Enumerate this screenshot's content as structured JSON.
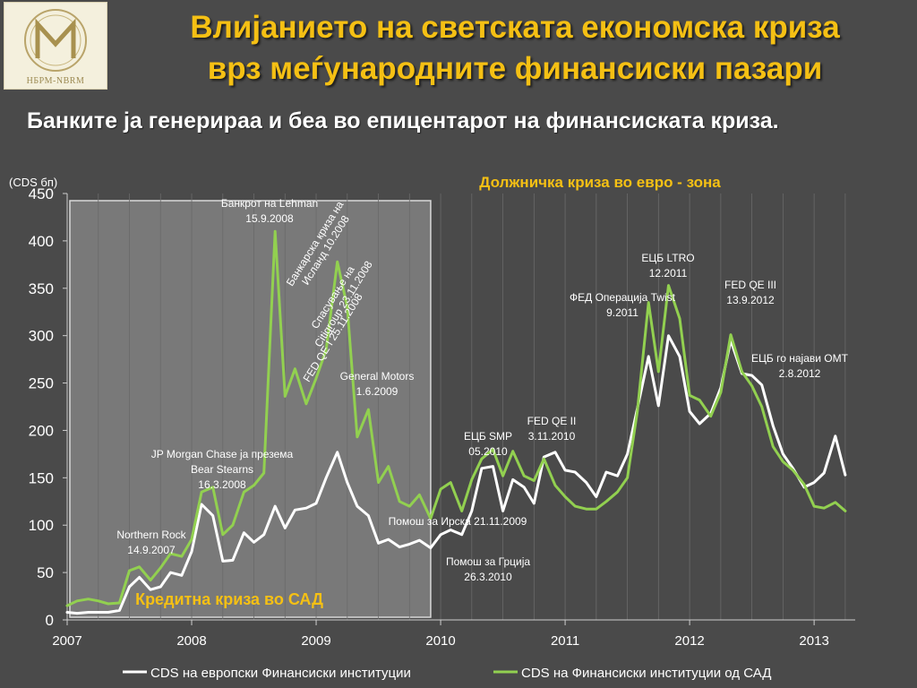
{
  "header": {
    "logo_caption": "НБРМ-NBRM",
    "title_line1": "Влијанието на светската економска криза",
    "title_line2": "врз меѓународните финансиски пазари",
    "subtitle": "Банките ја генерираа и беа во епицентарот на финансиската криза."
  },
  "colors": {
    "background": "#4a4a4a",
    "title": "#f5c014",
    "highlight_label": "#f5c014",
    "series_europe": "#ffffff",
    "series_usa": "#92d050",
    "shaded_region": "#8a8a8a"
  },
  "chart_data": {
    "type": "line",
    "ylabel": "(CDS бп)",
    "ylim": [
      0,
      450
    ],
    "yticks": [
      0,
      50,
      100,
      150,
      200,
      250,
      300,
      350,
      400,
      450
    ],
    "xlim": [
      2007.0,
      2013.33
    ],
    "xticks": [
      {
        "value": 2007,
        "label": "2007"
      },
      {
        "value": 2008,
        "label": "2008"
      },
      {
        "value": 2009,
        "label": "2009"
      },
      {
        "value": 2010,
        "label": "2010"
      },
      {
        "value": 2011,
        "label": "2011"
      },
      {
        "value": 2012,
        "label": "2012"
      },
      {
        "value": 2013,
        "label": "2013"
      }
    ],
    "grid": "vertical",
    "legend_position": "bottom",
    "shaded_region": {
      "x": [
        2007.0,
        2009.92
      ],
      "label": "Кредитна криза во САД"
    },
    "region_label": "Должничка криза во евро - зона",
    "series": [
      {
        "name": "CDS на европски Финансиски институции",
        "color": "#ffffff",
        "points": [
          [
            2007.0,
            8
          ],
          [
            2007.08,
            7
          ],
          [
            2007.17,
            8
          ],
          [
            2007.25,
            8
          ],
          [
            2007.33,
            8
          ],
          [
            2007.42,
            10
          ],
          [
            2007.5,
            35
          ],
          [
            2007.58,
            45
          ],
          [
            2007.67,
            32
          ],
          [
            2007.75,
            35
          ],
          [
            2007.83,
            50
          ],
          [
            2007.92,
            47
          ],
          [
            2008.0,
            72
          ],
          [
            2008.08,
            122
          ],
          [
            2008.17,
            110
          ],
          [
            2008.25,
            62
          ],
          [
            2008.33,
            63
          ],
          [
            2008.42,
            92
          ],
          [
            2008.5,
            82
          ],
          [
            2008.58,
            90
          ],
          [
            2008.67,
            120
          ],
          [
            2008.75,
            97
          ],
          [
            2008.83,
            116
          ],
          [
            2008.92,
            118
          ],
          [
            2009.0,
            123
          ],
          [
            2009.08,
            150
          ],
          [
            2009.17,
            177
          ],
          [
            2009.25,
            145
          ],
          [
            2009.33,
            120
          ],
          [
            2009.42,
            110
          ],
          [
            2009.5,
            81
          ],
          [
            2009.58,
            85
          ],
          [
            2009.67,
            77
          ],
          [
            2009.75,
            80
          ],
          [
            2009.83,
            84
          ],
          [
            2009.92,
            76
          ],
          [
            2010.0,
            90
          ],
          [
            2010.08,
            95
          ],
          [
            2010.17,
            90
          ],
          [
            2010.25,
            115
          ],
          [
            2010.33,
            160
          ],
          [
            2010.42,
            162
          ],
          [
            2010.5,
            115
          ],
          [
            2010.58,
            148
          ],
          [
            2010.67,
            140
          ],
          [
            2010.75,
            123
          ],
          [
            2010.83,
            172
          ],
          [
            2010.92,
            177
          ],
          [
            2011.0,
            158
          ],
          [
            2011.08,
            156
          ],
          [
            2011.17,
            145
          ],
          [
            2011.25,
            130
          ],
          [
            2011.33,
            156
          ],
          [
            2011.42,
            152
          ],
          [
            2011.5,
            175
          ],
          [
            2011.58,
            223
          ],
          [
            2011.67,
            278
          ],
          [
            2011.75,
            226
          ],
          [
            2011.83,
            300
          ],
          [
            2011.92,
            278
          ],
          [
            2012.0,
            220
          ],
          [
            2012.08,
            207
          ],
          [
            2012.17,
            218
          ],
          [
            2012.25,
            245
          ],
          [
            2012.33,
            295
          ],
          [
            2012.42,
            260
          ],
          [
            2012.5,
            258
          ],
          [
            2012.58,
            248
          ],
          [
            2012.67,
            205
          ],
          [
            2012.75,
            175
          ],
          [
            2012.83,
            160
          ],
          [
            2012.92,
            140
          ],
          [
            2013.0,
            145
          ],
          [
            2013.08,
            155
          ],
          [
            2013.17,
            194
          ],
          [
            2013.25,
            153
          ]
        ]
      },
      {
        "name": "CDS на Финансиски институции од САД",
        "color": "#92d050",
        "points": [
          [
            2007.0,
            15
          ],
          [
            2007.08,
            20
          ],
          [
            2007.17,
            22
          ],
          [
            2007.25,
            20
          ],
          [
            2007.33,
            17
          ],
          [
            2007.42,
            18
          ],
          [
            2007.5,
            52
          ],
          [
            2007.58,
            56
          ],
          [
            2007.67,
            42
          ],
          [
            2007.75,
            55
          ],
          [
            2007.83,
            70
          ],
          [
            2007.92,
            67
          ],
          [
            2008.0,
            85
          ],
          [
            2008.08,
            135
          ],
          [
            2008.17,
            140
          ],
          [
            2008.25,
            90
          ],
          [
            2008.33,
            100
          ],
          [
            2008.42,
            135
          ],
          [
            2008.5,
            142
          ],
          [
            2008.58,
            155
          ],
          [
            2008.67,
            410
          ],
          [
            2008.75,
            236
          ],
          [
            2008.83,
            265
          ],
          [
            2008.92,
            228
          ],
          [
            2009.0,
            255
          ],
          [
            2009.08,
            285
          ],
          [
            2009.17,
            378
          ],
          [
            2009.25,
            330
          ],
          [
            2009.33,
            193
          ],
          [
            2009.42,
            222
          ],
          [
            2009.5,
            145
          ],
          [
            2009.58,
            162
          ],
          [
            2009.67,
            125
          ],
          [
            2009.75,
            120
          ],
          [
            2009.83,
            132
          ],
          [
            2009.92,
            107
          ],
          [
            2010.0,
            138
          ],
          [
            2010.08,
            145
          ],
          [
            2010.17,
            115
          ],
          [
            2010.25,
            148
          ],
          [
            2010.33,
            170
          ],
          [
            2010.42,
            180
          ],
          [
            2010.5,
            152
          ],
          [
            2010.58,
            178
          ],
          [
            2010.67,
            152
          ],
          [
            2010.75,
            147
          ],
          [
            2010.83,
            170
          ],
          [
            2010.92,
            142
          ],
          [
            2011.0,
            130
          ],
          [
            2011.08,
            120
          ],
          [
            2011.17,
            117
          ],
          [
            2011.25,
            117
          ],
          [
            2011.33,
            125
          ],
          [
            2011.42,
            135
          ],
          [
            2011.5,
            150
          ],
          [
            2011.58,
            220
          ],
          [
            2011.67,
            335
          ],
          [
            2011.75,
            262
          ],
          [
            2011.83,
            353
          ],
          [
            2011.92,
            318
          ],
          [
            2012.0,
            237
          ],
          [
            2012.08,
            232
          ],
          [
            2012.17,
            215
          ],
          [
            2012.25,
            240
          ],
          [
            2012.33,
            301
          ],
          [
            2012.42,
            262
          ],
          [
            2012.5,
            247
          ],
          [
            2012.58,
            225
          ],
          [
            2012.67,
            183
          ],
          [
            2012.75,
            167
          ],
          [
            2012.83,
            158
          ],
          [
            2012.92,
            143
          ],
          [
            2013.0,
            120
          ],
          [
            2013.08,
            118
          ],
          [
            2013.17,
            124
          ],
          [
            2013.25,
            115
          ]
        ]
      }
    ],
    "annotations": [
      {
        "id": "northern-rock",
        "lines": [
          "Northern Rock",
          "14.9.2007"
        ]
      },
      {
        "id": "bear-stearns",
        "lines": [
          "JP Morgan Chase ја презема",
          "Bear Stearns",
          "16.3.2008"
        ]
      },
      {
        "id": "lehman",
        "lines": [
          "Банкрот на  Lehman",
          "15.9.2008"
        ]
      },
      {
        "id": "iceland",
        "lines": [
          "Банкарска криза на",
          "Исланд 10.2008"
        ]
      },
      {
        "id": "citigroup",
        "lines": [
          "Спасување на",
          "Citigroup 23.11.2008"
        ]
      },
      {
        "id": "fed-qe1",
        "lines": [
          "FED QE I 25.11.2008"
        ]
      },
      {
        "id": "general-motors",
        "lines": [
          "General Motors",
          "1.6.2009"
        ]
      },
      {
        "id": "ireland",
        "lines": [
          "Помош за Ирска 21.11.2009"
        ]
      },
      {
        "id": "greece",
        "lines": [
          "Помош за Грција",
          "26.3.2010"
        ]
      },
      {
        "id": "ecb-smp",
        "lines": [
          "ЕЦБ SMP",
          "05.2010"
        ]
      },
      {
        "id": "fed-qe2",
        "lines": [
          "FED QE II",
          "3.11.2010"
        ]
      },
      {
        "id": "fed-twist",
        "lines": [
          "ФЕД Операција Twist",
          "9.2011"
        ]
      },
      {
        "id": "ecb-ltro",
        "lines": [
          "ЕЦБ LTRO",
          "12.2011"
        ]
      },
      {
        "id": "fed-qe3",
        "lines": [
          "FED QE III",
          "13.9.2012"
        ]
      },
      {
        "id": "ecb-omt",
        "lines": [
          "ЕЦБ го најави ОМТ",
          "2.8.2012"
        ]
      }
    ]
  }
}
